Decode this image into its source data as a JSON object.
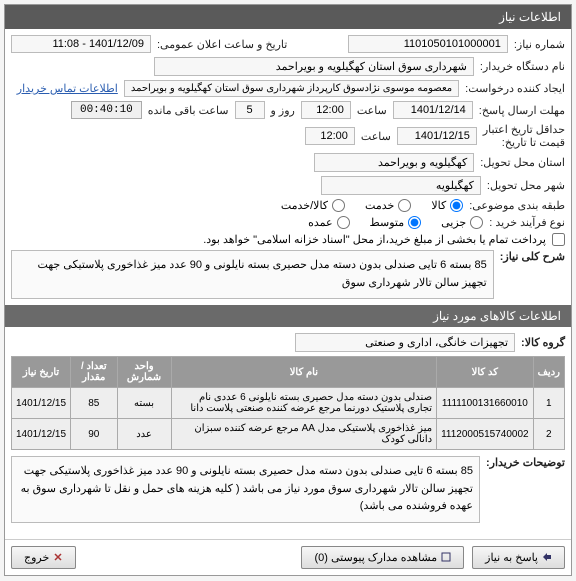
{
  "header": {
    "titles": [
      "اطلاعات نیاز"
    ]
  },
  "fields": {
    "need_no_label": "شماره نیاز:",
    "need_no": "1101050101000001",
    "announce_label": "تاریخ و ساعت اعلان عمومی:",
    "announce_value": "1401/12/09 - 11:08",
    "buyer_label": "نام دستگاه خریدار:",
    "buyer_value": "شهرداری سوق استان کهگیلویه و بویراحمد",
    "requester_label": "ایجاد کننده درخواست:",
    "requester_value": "معصومه موسوی نژادسوق کارپرداز شهرداری سوق استان کهگیلویه و بویراحمد",
    "contact_link": "اطلاعات تماس خریدار",
    "reply_deadline_label": "مهلت ارسال پاسخ:",
    "reply_date": "1401/12/14",
    "time_label": "ساعت",
    "reply_time": "12:00",
    "daytime_label": "روز و",
    "days_value": "5",
    "remaining_label": "ساعت باقی مانده",
    "timer": "00:40:10",
    "min_validity_label": "حداقل تاریخ اعتبار",
    "min_validity_label2": "قیمت تا تاریخ:",
    "validity_date": "1401/12/15",
    "validity_time": "12:00",
    "province_label": "استان محل تحویل:",
    "province_value": "کهگیلویه و بویراحمد",
    "city_label": "شهر محل تحویل:",
    "city_value": "کهگیلویه",
    "category_label": "طبقه بندی موضوعی:",
    "cat_opts": {
      "goods": "کالا",
      "service": "خدمت",
      "both": "کالا/خدمت"
    },
    "process_label": "نوع فرآیند خرید :",
    "proc_opts": {
      "small": "جزیی",
      "mid": "متوسط",
      "large": "عمده"
    },
    "payment_line": "پرداخت تمام یا بخشی از مبلغ خرید،از محل \"اسناد خزانه اسلامی\" خواهد بود.",
    "title_label": "شرح کلی نیاز:",
    "title_value": "85 بسته 6 تایی صندلی بدون دسته مدل حصیری بسته نایلونی و 90 عدد میز غذاخوری پلاستیکی جهت تجهیز سالن تالار شهرداری سوق",
    "items_header": "اطلاعات کالاهای مورد نیاز",
    "group_label": "گروه کالا:",
    "group_value": "تجهیزات خانگی، اداری و صنعتی",
    "note_label": "توضیحات خریدار:",
    "note_value": "85 بسته 6 تایی صندلی بدون دسته مدل حصیری بسته نایلونی و 90 عدد میز غذاخوری پلاستیکی جهت تجهیز سالن تالار شهرداری سوق مورد نیاز می باشد ( کلیه هزینه های حمل و نقل تا شهرداری سوق به عهده فروشنده می باشد)"
  },
  "table": {
    "cols": [
      "ردیف",
      "کد کالا",
      "نام کالا",
      "واحد شمارش",
      "تعداد / مقدار",
      "تاریخ نیاز"
    ],
    "rows": [
      [
        "1",
        "1111100131660010",
        "صندلی بدون دسته مدل حصیری بسته نایلونی 6 عددی نام تجاری پلاستیک دورنما مرجع عرضه کننده صنعتی پلاست دانا",
        "بسته",
        "85",
        "1401/12/15"
      ],
      [
        "2",
        "1112000515740002",
        "میز غذاخوری پلاستیکی مدل AA مرجع عرضه کننده سبزان دانالی کودک",
        "عدد",
        "90",
        "1401/12/15"
      ]
    ]
  },
  "footer": {
    "reply": "پاسخ به نیاز",
    "docs": "مشاهده مدارک پیوستی (0)",
    "exit": "خروج"
  },
  "colors": {
    "hdr_bg": "#5a5a5a",
    "th_bg": "#999999"
  }
}
